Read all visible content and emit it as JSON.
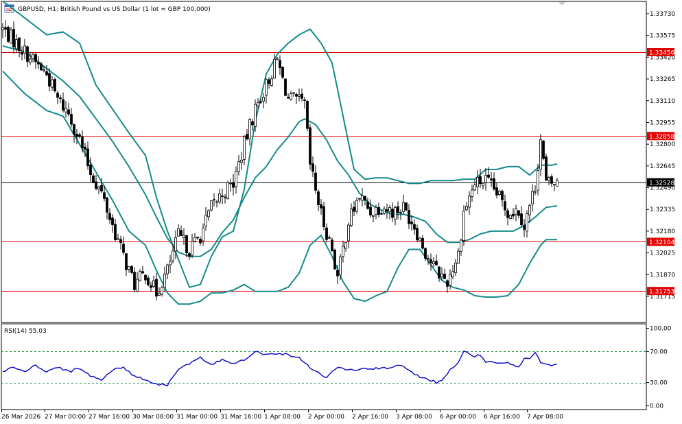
{
  "header": {
    "symbol_title": "GBPUSD, H1:  British Pound vs US Dollar (1 lot = GBP 100,000)",
    "rsi_title": "RSI(14) 55.03"
  },
  "colors": {
    "candle": "#000000",
    "bands": "#138a8a",
    "level_line": "#e00000",
    "level_tag": "#e00000",
    "price_tag": "#000000",
    "rsi_line": "#1010c8",
    "rsi_levels": "#1e8a3c"
  },
  "chart_data": [
    {
      "type": "candlestick",
      "title": "GBPUSD, H1",
      "y_ticks": [
        "1.33730",
        "1.33575",
        "1.33420",
        "1.33265",
        "1.33110",
        "1.32955",
        "1.32800",
        "1.32645",
        "1.32490",
        "1.32335",
        "1.32180",
        "1.32025",
        "1.31870",
        "1.31715"
      ],
      "y_range": [
        1.3166,
        1.3382
      ],
      "x_ticks": [
        "26 Mar 2026",
        "27 Mar 00:00",
        "27 Mar 16:00",
        "30 Mar 08:00",
        "31 Mar 00:00",
        "31 Mar 16:00",
        "1 Apr 08:00",
        "2 Apr 00:00",
        "2 Apr 16:00",
        "3 Apr 08:00",
        "6 Apr 00:00",
        "6 Apr 16:00",
        "7 Apr 08:00"
      ],
      "horizontal_levels": [
        "1.33456",
        "1.32858",
        "1.32104",
        "1.31753"
      ],
      "current_price": "1.32528",
      "close_path": [
        [
          0,
          1.3362
        ],
        [
          6,
          1.335
        ],
        [
          12,
          1.3338
        ],
        [
          16,
          1.333
        ],
        [
          20,
          1.3312
        ],
        [
          24,
          1.3302
        ],
        [
          28,
          1.3283
        ],
        [
          32,
          1.326
        ],
        [
          36,
          1.3245
        ],
        [
          40,
          1.3222
        ],
        [
          44,
          1.32
        ],
        [
          48,
          1.318
        ],
        [
          52,
          1.3188
        ],
        [
          56,
          1.3174
        ],
        [
          60,
          1.319
        ],
        [
          64,
          1.3215
        ],
        [
          68,
          1.3205
        ],
        [
          72,
          1.3215
        ],
        [
          76,
          1.3235
        ],
        [
          80,
          1.3245
        ],
        [
          84,
          1.3252
        ],
        [
          88,
          1.328
        ],
        [
          92,
          1.3305
        ],
        [
          96,
          1.3322
        ],
        [
          100,
          1.334
        ],
        [
          104,
          1.3312
        ],
        [
          108,
          1.331
        ],
        [
          110,
          1.3308
        ],
        [
          112,
          1.3265
        ],
        [
          116,
          1.323
        ],
        [
          120,
          1.3205
        ],
        [
          122,
          1.3185
        ],
        [
          126,
          1.3225
        ],
        [
          130,
          1.3243
        ],
        [
          134,
          1.3232
        ],
        [
          138,
          1.3236
        ],
        [
          142,
          1.3232
        ],
        [
          146,
          1.3235
        ],
        [
          150,
          1.3222
        ],
        [
          154,
          1.3203
        ],
        [
          158,
          1.319
        ],
        [
          162,
          1.3182
        ],
        [
          166,
          1.3202
        ],
        [
          168,
          1.3232
        ],
        [
          172,
          1.3252
        ],
        [
          176,
          1.3254
        ],
        [
          180,
          1.3245
        ],
        [
          184,
          1.3232
        ],
        [
          188,
          1.3233
        ],
        [
          190,
          1.3222
        ],
        [
          194,
          1.325
        ],
        [
          196,
          1.3283
        ],
        [
          198,
          1.3252
        ],
        [
          202,
          1.3252
        ]
      ],
      "bollinger_upper": [
        [
          0,
          1.3382
        ],
        [
          8,
          1.337
        ],
        [
          16,
          1.3358
        ],
        [
          22,
          1.336
        ],
        [
          28,
          1.3352
        ],
        [
          34,
          1.3322
        ],
        [
          40,
          1.3305
        ],
        [
          46,
          1.3288
        ],
        [
          52,
          1.3272
        ],
        [
          56,
          1.3242
        ],
        [
          60,
          1.3218
        ],
        [
          64,
          1.3198
        ],
        [
          68,
          1.3178
        ],
        [
          72,
          1.318
        ],
        [
          76,
          1.32
        ],
        [
          80,
          1.3214
        ],
        [
          84,
          1.3218
        ],
        [
          88,
          1.3248
        ],
        [
          92,
          1.3296
        ],
        [
          96,
          1.333
        ],
        [
          100,
          1.3344
        ],
        [
          104,
          1.3352
        ],
        [
          108,
          1.3358
        ],
        [
          112,
          1.3362
        ],
        [
          116,
          1.3352
        ],
        [
          120,
          1.3338
        ],
        [
          124,
          1.33
        ],
        [
          128,
          1.3262
        ],
        [
          132,
          1.3255
        ],
        [
          136,
          1.3256
        ],
        [
          140,
          1.3256
        ],
        [
          144,
          1.3254
        ],
        [
          148,
          1.3252
        ],
        [
          152,
          1.3252
        ],
        [
          156,
          1.3254
        ],
        [
          160,
          1.3254
        ],
        [
          164,
          1.3254
        ],
        [
          168,
          1.3255
        ],
        [
          172,
          1.3255
        ],
        [
          176,
          1.3262
        ],
        [
          180,
          1.3262
        ],
        [
          184,
          1.3264
        ],
        [
          188,
          1.3264
        ],
        [
          192,
          1.3258
        ],
        [
          196,
          1.3265
        ],
        [
          200,
          1.3265
        ],
        [
          202,
          1.3266
        ]
      ],
      "bollinger_middle": [
        [
          0,
          1.335
        ],
        [
          8,
          1.3346
        ],
        [
          16,
          1.3334
        ],
        [
          22,
          1.3325
        ],
        [
          28,
          1.3314
        ],
        [
          34,
          1.3298
        ],
        [
          40,
          1.3282
        ],
        [
          46,
          1.3264
        ],
        [
          52,
          1.3244
        ],
        [
          56,
          1.3228
        ],
        [
          60,
          1.3213
        ],
        [
          64,
          1.3203
        ],
        [
          68,
          1.32
        ],
        [
          72,
          1.32
        ],
        [
          76,
          1.3205
        ],
        [
          80,
          1.3217
        ],
        [
          84,
          1.3226
        ],
        [
          88,
          1.3242
        ],
        [
          92,
          1.3256
        ],
        [
          96,
          1.3264
        ],
        [
          100,
          1.3276
        ],
        [
          104,
          1.3285
        ],
        [
          108,
          1.3296
        ],
        [
          110,
          1.3298
        ],
        [
          114,
          1.3294
        ],
        [
          118,
          1.3283
        ],
        [
          122,
          1.3268
        ],
        [
          126,
          1.3258
        ],
        [
          130,
          1.3245
        ],
        [
          134,
          1.3237
        ],
        [
          138,
          1.3233
        ],
        [
          142,
          1.323
        ],
        [
          146,
          1.323
        ],
        [
          150,
          1.3228
        ],
        [
          154,
          1.3225
        ],
        [
          158,
          1.3216
        ],
        [
          162,
          1.321
        ],
        [
          166,
          1.321
        ],
        [
          170,
          1.3212
        ],
        [
          174,
          1.3216
        ],
        [
          178,
          1.3218
        ],
        [
          182,
          1.3218
        ],
        [
          186,
          1.3218
        ],
        [
          190,
          1.3222
        ],
        [
          194,
          1.3228
        ],
        [
          198,
          1.3235
        ],
        [
          202,
          1.3236
        ]
      ],
      "bollinger_lower": [
        [
          0,
          1.3332
        ],
        [
          8,
          1.3316
        ],
        [
          16,
          1.3304
        ],
        [
          22,
          1.33
        ],
        [
          28,
          1.328
        ],
        [
          34,
          1.326
        ],
        [
          40,
          1.324
        ],
        [
          46,
          1.3218
        ],
        [
          52,
          1.3208
        ],
        [
          56,
          1.319
        ],
        [
          60,
          1.3174
        ],
        [
          64,
          1.3166
        ],
        [
          68,
          1.3166
        ],
        [
          72,
          1.3168
        ],
        [
          76,
          1.3174
        ],
        [
          80,
          1.3174
        ],
        [
          84,
          1.3176
        ],
        [
          88,
          1.318
        ],
        [
          92,
          1.3175
        ],
        [
          96,
          1.3175
        ],
        [
          100,
          1.3175
        ],
        [
          104,
          1.3178
        ],
        [
          108,
          1.3188
        ],
        [
          112,
          1.3208
        ],
        [
          116,
          1.3215
        ],
        [
          120,
          1.32
        ],
        [
          124,
          1.3182
        ],
        [
          128,
          1.317
        ],
        [
          132,
          1.3168
        ],
        [
          136,
          1.3172
        ],
        [
          140,
          1.3175
        ],
        [
          144,
          1.3192
        ],
        [
          148,
          1.3205
        ],
        [
          152,
          1.3205
        ],
        [
          156,
          1.3194
        ],
        [
          160,
          1.3183
        ],
        [
          164,
          1.3178
        ],
        [
          168,
          1.3176
        ],
        [
          172,
          1.3172
        ],
        [
          176,
          1.3171
        ],
        [
          180,
          1.3171
        ],
        [
          184,
          1.3172
        ],
        [
          188,
          1.318
        ],
        [
          192,
          1.3195
        ],
        [
          196,
          1.3208
        ],
        [
          198,
          1.3212
        ],
        [
          202,
          1.3212
        ]
      ]
    },
    {
      "type": "line",
      "title": "RSI(14) 55.03",
      "y_ticks": [
        "100.00",
        "70.00",
        "30.00",
        "0.00"
      ],
      "y_range": [
        0,
        100
      ],
      "levels": [
        70,
        30
      ],
      "values": [
        [
          0,
          44
        ],
        [
          4,
          50
        ],
        [
          8,
          44
        ],
        [
          12,
          52
        ],
        [
          16,
          44
        ],
        [
          20,
          50
        ],
        [
          24,
          44
        ],
        [
          28,
          48
        ],
        [
          32,
          39
        ],
        [
          36,
          34
        ],
        [
          40,
          46
        ],
        [
          44,
          50
        ],
        [
          48,
          38
        ],
        [
          52,
          34
        ],
        [
          56,
          28
        ],
        [
          60,
          27
        ],
        [
          64,
          48
        ],
        [
          68,
          54
        ],
        [
          72,
          62
        ],
        [
          76,
          52
        ],
        [
          80,
          60
        ],
        [
          84,
          55
        ],
        [
          88,
          60
        ],
        [
          92,
          70
        ],
        [
          96,
          66
        ],
        [
          100,
          68
        ],
        [
          104,
          66
        ],
        [
          108,
          62
        ],
        [
          112,
          50
        ],
        [
          116,
          40
        ],
        [
          118,
          37
        ],
        [
          122,
          50
        ],
        [
          126,
          46
        ],
        [
          130,
          47
        ],
        [
          134,
          48
        ],
        [
          138,
          48
        ],
        [
          142,
          50
        ],
        [
          146,
          52
        ],
        [
          150,
          40
        ],
        [
          154,
          36
        ],
        [
          158,
          30
        ],
        [
          160,
          34
        ],
        [
          164,
          50
        ],
        [
          166,
          57
        ],
        [
          168,
          70
        ],
        [
          172,
          64
        ],
        [
          174,
          66
        ],
        [
          176,
          56
        ],
        [
          180,
          56
        ],
        [
          184,
          55
        ],
        [
          188,
          50
        ],
        [
          190,
          60
        ],
        [
          192,
          62
        ],
        [
          194,
          70
        ],
        [
          196,
          55
        ],
        [
          200,
          53
        ],
        [
          202,
          55
        ]
      ]
    }
  ]
}
